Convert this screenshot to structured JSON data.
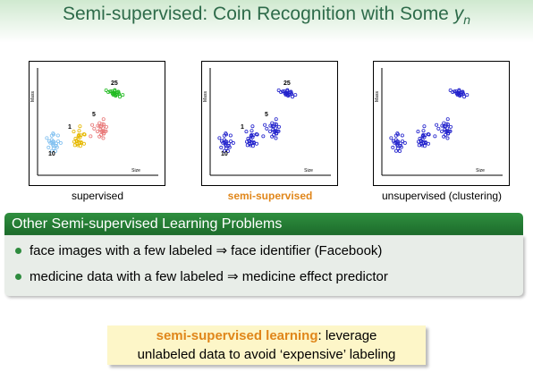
{
  "title": {
    "text": "Semi-supervised: Coin Recognition with Some ",
    "var": "y",
    "sub": "n"
  },
  "panels": [
    {
      "caption": "supervised",
      "y_label": "Mass",
      "x_label": "Size",
      "labels": [
        "25",
        "5",
        "1",
        "10"
      ]
    },
    {
      "caption": "semi-supervised",
      "y_label": "Mass",
      "x_label": "Size",
      "labels": [
        "25",
        "5",
        "1",
        "10"
      ]
    },
    {
      "caption": "unsupervised (clustering)",
      "y_label": "Mass",
      "x_label": "Size"
    }
  ],
  "box": {
    "title": "Other Semi-supervised Learning Problems",
    "items": [
      "face images with a few labeled ⇒ face identifier (Facebook)",
      "medicine data with a few labeled ⇒ medicine effect predictor"
    ]
  },
  "note": {
    "highlight": "semi-supervised learning",
    "line1": ": leverage",
    "line2": "unlabeled data to avoid ‘expensive’ labeling"
  }
}
